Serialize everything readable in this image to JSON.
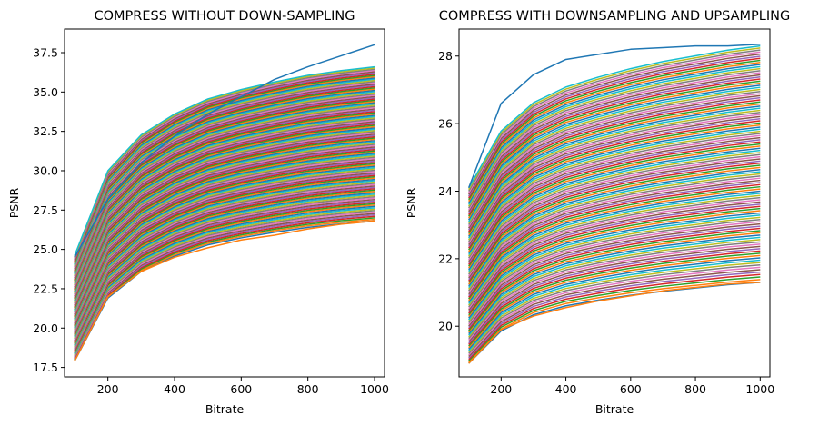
{
  "chart_data": [
    {
      "type": "line",
      "title": "COMPRESS WITHOUT DOWN-SAMPLING",
      "xlabel": "Bitrate",
      "ylabel": "PSNR",
      "xlim": [
        70,
        1030
      ],
      "ylim": [
        16.9,
        39.0
      ],
      "xticks": [
        200,
        400,
        600,
        800,
        1000
      ],
      "xtick_labels": [
        "200",
        "400",
        "600",
        "800",
        "1000"
      ],
      "yticks": [
        17.5,
        20.0,
        22.5,
        25.0,
        27.5,
        30.0,
        32.5,
        35.0,
        37.5
      ],
      "ytick_labels": [
        "17.5",
        "20.0",
        "22.5",
        "25.0",
        "27.5",
        "30.0",
        "32.5",
        "35.0",
        "37.5"
      ],
      "x": [
        100,
        200,
        300,
        400,
        500,
        600,
        700,
        800,
        900,
        1000
      ],
      "series_count": 120,
      "series_range": {
        "low_start": 17.9,
        "high_start": 24.6,
        "low_end": 26.8,
        "high_end": 36.6
      },
      "series_shape": [
        0.0,
        0.45,
        0.64,
        0.75,
        0.83,
        0.88,
        0.92,
        0.955,
        0.98,
        1.0
      ],
      "series_highlight": [
        {
          "values": [
            24.5,
            28.2,
            30.5,
            32.2,
            33.6,
            34.7,
            35.8,
            36.6,
            37.3,
            38.0
          ]
        },
        {
          "values": [
            17.9,
            22.0,
            23.6,
            24.5,
            25.1,
            25.6,
            25.9,
            26.3,
            26.6,
            26.8
          ]
        }
      ],
      "grid": false,
      "legend": "none"
    },
    {
      "type": "line",
      "title": "COMPRESS WITH DOWNSAMPLING AND UPSAMPLING",
      "xlabel": "Bitrate",
      "ylabel": "PSNR",
      "xlim": [
        70,
        1030
      ],
      "ylim": [
        18.5,
        28.8
      ],
      "xticks": [
        200,
        400,
        600,
        800,
        1000
      ],
      "xtick_labels": [
        "200",
        "400",
        "600",
        "800",
        "1000"
      ],
      "yticks": [
        20,
        22,
        24,
        26,
        28
      ],
      "ytick_labels": [
        "20",
        "22",
        "24",
        "26",
        "28"
      ],
      "x": [
        100,
        200,
        300,
        400,
        500,
        600,
        700,
        800,
        900,
        1000
      ],
      "series_count": 110,
      "series_range": {
        "low_start": 18.9,
        "high_start": 24.1,
        "low_end": 21.3,
        "high_end": 28.3
      },
      "series_shape": [
        0.0,
        0.4,
        0.6,
        0.71,
        0.78,
        0.84,
        0.89,
        0.93,
        0.97,
        1.0
      ],
      "series_highlight": [
        {
          "values": [
            24.1,
            26.6,
            27.45,
            27.9,
            28.05,
            28.2,
            28.25,
            28.3,
            28.3,
            28.35
          ]
        },
        {
          "values": [
            18.9,
            19.9,
            20.3,
            20.55,
            20.75,
            20.9,
            21.05,
            21.15,
            21.25,
            21.3
          ]
        }
      ],
      "grid": false,
      "legend": "none"
    }
  ],
  "colors": [
    "#1f77b4",
    "#ff7f0e",
    "#2ca02c",
    "#d62728",
    "#9467bd",
    "#8c564b",
    "#e377c2",
    "#7f7f7f",
    "#bcbd22",
    "#17becf"
  ]
}
